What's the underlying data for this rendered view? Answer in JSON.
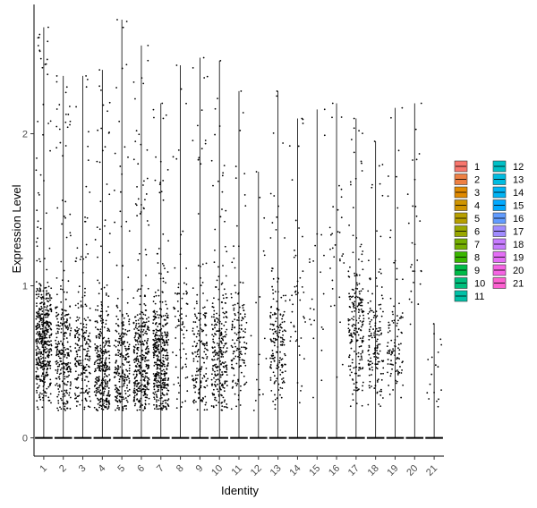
{
  "chart_data": {
    "type": "violin",
    "xlabel": "Identity",
    "ylabel": "Expression Level",
    "categories": [
      "1",
      "2",
      "3",
      "4",
      "5",
      "6",
      "7",
      "8",
      "9",
      "10",
      "11",
      "12",
      "13",
      "14",
      "15",
      "16",
      "17",
      "18",
      "19",
      "20",
      "21"
    ],
    "y_ticks": [
      0,
      1,
      2
    ],
    "ylim": [
      -0.12,
      2.85
    ],
    "max_values": [
      2.7,
      2.38,
      2.38,
      2.42,
      2.75,
      2.58,
      2.2,
      2.45,
      2.5,
      2.48,
      2.28,
      1.75,
      2.28,
      2.1,
      2.16,
      2.2,
      2.1,
      1.95,
      2.17,
      2.2,
      0.75
    ],
    "cluster_density": [
      1.0,
      0.6,
      0.45,
      0.7,
      0.5,
      0.75,
      0.85,
      0.15,
      0.35,
      0.55,
      0.3,
      0.02,
      0.35,
      0.08,
      0.03,
      0.05,
      0.45,
      0.3,
      0.2,
      0.04,
      0.02
    ],
    "cluster_center": [
      0.65,
      0.55,
      0.55,
      0.45,
      0.45,
      0.5,
      0.5,
      0.7,
      0.5,
      0.55,
      0.6,
      0.5,
      0.6,
      0.9,
      1.0,
      1.2,
      0.7,
      0.6,
      0.55,
      1.2,
      0.3
    ],
    "legend": {
      "title": "",
      "placement": "right",
      "entries": [
        "1",
        "2",
        "3",
        "4",
        "5",
        "6",
        "7",
        "8",
        "9",
        "10",
        "11",
        "12",
        "13",
        "14",
        "15",
        "16",
        "17",
        "18",
        "19",
        "20",
        "21"
      ],
      "colors": [
        "#F8766D",
        "#EE8043",
        "#E18A00",
        "#CF9400",
        "#B79F00",
        "#9AA800",
        "#75AF00",
        "#3AB600",
        "#00BB48",
        "#00BF7D",
        "#00C1A7",
        "#00C0C6",
        "#00BCE1",
        "#00B4F5",
        "#00A9FF",
        "#619CFF",
        "#A18CFF",
        "#C77CFF",
        "#E46DF6",
        "#F564E3",
        "#FD61D1"
      ]
    },
    "grid": false
  }
}
